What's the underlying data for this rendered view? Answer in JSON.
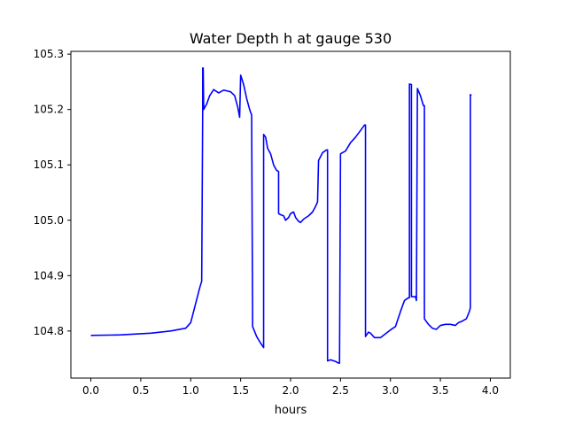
{
  "chart_data": {
    "type": "line",
    "title": "Water Depth h at gauge 530",
    "xlabel": "hours",
    "ylabel": "",
    "xlim": [
      -0.2,
      4.2
    ],
    "ylim": [
      104.715,
      105.305
    ],
    "x_ticks": [
      0.0,
      0.5,
      1.0,
      1.5,
      2.0,
      2.5,
      3.0,
      3.5,
      4.0
    ],
    "x_tick_labels": [
      "0.0",
      "0.5",
      "1.0",
      "1.5",
      "2.0",
      "2.5",
      "3.0",
      "3.5",
      "4.0"
    ],
    "y_ticks": [
      104.8,
      104.9,
      105.0,
      105.1,
      105.2,
      105.3
    ],
    "y_tick_labels": [
      "104.8",
      "104.9",
      "105.0",
      "105.1",
      "105.2",
      "105.3"
    ],
    "grid": false,
    "legend": "none",
    "series": [
      {
        "color": "#0000ff",
        "points": [
          [
            0.0,
            104.792
          ],
          [
            0.3,
            104.793
          ],
          [
            0.6,
            104.796
          ],
          [
            0.8,
            104.8
          ],
          [
            0.95,
            104.805
          ],
          [
            1.0,
            104.815
          ],
          [
            1.05,
            104.85
          ],
          [
            1.09,
            104.878
          ],
          [
            1.11,
            104.89
          ],
          [
            1.12,
            105.2
          ],
          [
            1.12,
            105.275
          ],
          [
            1.125,
            105.275
          ],
          [
            1.13,
            105.2
          ],
          [
            1.16,
            105.21
          ],
          [
            1.19,
            105.225
          ],
          [
            1.23,
            105.236
          ],
          [
            1.28,
            105.23
          ],
          [
            1.33,
            105.235
          ],
          [
            1.4,
            105.232
          ],
          [
            1.44,
            105.225
          ],
          [
            1.47,
            105.205
          ],
          [
            1.49,
            105.186
          ],
          [
            1.5,
            105.262
          ],
          [
            1.53,
            105.245
          ],
          [
            1.56,
            105.22
          ],
          [
            1.59,
            105.2
          ],
          [
            1.61,
            105.19
          ],
          [
            1.62,
            104.808
          ],
          [
            1.66,
            104.79
          ],
          [
            1.7,
            104.778
          ],
          [
            1.73,
            104.77
          ],
          [
            1.73,
            105.155
          ],
          [
            1.75,
            105.15
          ],
          [
            1.77,
            105.13
          ],
          [
            1.8,
            105.12
          ],
          [
            1.83,
            105.1
          ],
          [
            1.86,
            105.09
          ],
          [
            1.88,
            105.088
          ],
          [
            1.88,
            105.012
          ],
          [
            1.9,
            105.01
          ],
          [
            1.93,
            105.008
          ],
          [
            1.95,
            105.0
          ],
          [
            1.98,
            105.005
          ],
          [
            2.0,
            105.012
          ],
          [
            2.03,
            105.015
          ],
          [
            2.05,
            105.005
          ],
          [
            2.08,
            104.998
          ],
          [
            2.1,
            104.996
          ],
          [
            2.13,
            105.002
          ],
          [
            2.18,
            105.008
          ],
          [
            2.22,
            105.015
          ],
          [
            2.25,
            105.025
          ],
          [
            2.27,
            105.033
          ],
          [
            2.28,
            105.108
          ],
          [
            2.32,
            105.122
          ],
          [
            2.36,
            105.127
          ],
          [
            2.37,
            105.127
          ],
          [
            2.37,
            104.746
          ],
          [
            2.4,
            104.748
          ],
          [
            2.45,
            104.745
          ],
          [
            2.48,
            104.742
          ],
          [
            2.49,
            104.742
          ],
          [
            2.5,
            105.12
          ],
          [
            2.55,
            105.125
          ],
          [
            2.6,
            105.14
          ],
          [
            2.65,
            105.15
          ],
          [
            2.7,
            105.162
          ],
          [
            2.74,
            105.172
          ],
          [
            2.75,
            105.172
          ],
          [
            2.75,
            104.79
          ],
          [
            2.78,
            104.798
          ],
          [
            2.8,
            104.796
          ],
          [
            2.84,
            104.788
          ],
          [
            2.9,
            104.788
          ],
          [
            2.95,
            104.795
          ],
          [
            3.0,
            104.802
          ],
          [
            3.05,
            104.808
          ],
          [
            3.1,
            104.835
          ],
          [
            3.14,
            104.855
          ],
          [
            3.18,
            104.86
          ],
          [
            3.19,
            104.86
          ],
          [
            3.19,
            105.246
          ],
          [
            3.21,
            105.245
          ],
          [
            3.21,
            104.862
          ],
          [
            3.25,
            104.862
          ],
          [
            3.26,
            104.855
          ],
          [
            3.27,
            105.238
          ],
          [
            3.3,
            105.225
          ],
          [
            3.33,
            105.207
          ],
          [
            3.34,
            105.207
          ],
          [
            3.34,
            104.822
          ],
          [
            3.38,
            104.812
          ],
          [
            3.42,
            104.805
          ],
          [
            3.46,
            104.803
          ],
          [
            3.5,
            104.81
          ],
          [
            3.55,
            104.812
          ],
          [
            3.6,
            104.812
          ],
          [
            3.65,
            104.81
          ],
          [
            3.68,
            104.815
          ],
          [
            3.72,
            104.818
          ],
          [
            3.76,
            104.822
          ],
          [
            3.79,
            104.835
          ],
          [
            3.8,
            104.842
          ],
          [
            3.8,
            105.227
          ],
          [
            3.81,
            105.225
          ]
        ]
      }
    ]
  }
}
